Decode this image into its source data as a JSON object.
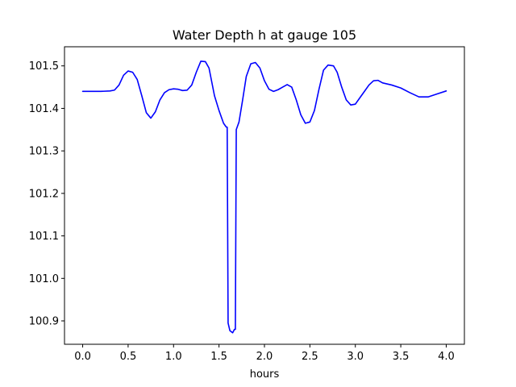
{
  "chart_data": {
    "type": "line",
    "title": "Water Depth h at gauge 105",
    "xlabel": "hours",
    "ylabel": "",
    "xlim": [
      -0.2,
      4.2
    ],
    "ylim": [
      100.845,
      101.545
    ],
    "xticks": [
      0.0,
      0.5,
      1.0,
      1.5,
      2.0,
      2.5,
      3.0,
      3.5,
      4.0
    ],
    "xtick_labels": [
      "0.0",
      "0.5",
      "1.0",
      "1.5",
      "2.0",
      "2.5",
      "3.0",
      "3.5",
      "4.0"
    ],
    "yticks": [
      100.9,
      101.0,
      101.1,
      101.2,
      101.3,
      101.4,
      101.5
    ],
    "ytick_labels": [
      "100.9",
      "101.0",
      "101.1",
      "101.2",
      "101.3",
      "101.4",
      "101.5"
    ],
    "grid": false,
    "series": [
      {
        "name": "",
        "color": "#0000ff",
        "x": [
          0.0,
          0.1,
          0.2,
          0.3,
          0.35,
          0.4,
          0.45,
          0.5,
          0.55,
          0.6,
          0.65,
          0.7,
          0.75,
          0.8,
          0.85,
          0.9,
          0.95,
          1.0,
          1.05,
          1.1,
          1.15,
          1.2,
          1.25,
          1.3,
          1.35,
          1.39,
          1.45,
          1.5,
          1.55,
          1.58,
          1.59,
          1.6,
          1.62,
          1.65,
          1.67,
          1.68,
          1.69,
          1.72,
          1.76,
          1.8,
          1.85,
          1.9,
          1.95,
          2.0,
          2.05,
          2.1,
          2.15,
          2.2,
          2.25,
          2.3,
          2.35,
          2.4,
          2.45,
          2.5,
          2.55,
          2.6,
          2.65,
          2.7,
          2.76,
          2.8,
          2.85,
          2.9,
          2.95,
          3.0,
          3.05,
          3.1,
          3.15,
          3.2,
          3.25,
          3.3,
          3.4,
          3.5,
          3.6,
          3.7,
          3.8,
          3.9,
          4.0
        ],
        "y": [
          101.44,
          101.44,
          101.44,
          101.441,
          101.443,
          101.455,
          101.478,
          101.488,
          101.485,
          101.468,
          101.43,
          101.39,
          101.377,
          101.392,
          101.42,
          101.437,
          101.444,
          101.446,
          101.445,
          101.442,
          101.443,
          101.455,
          101.485,
          101.511,
          101.51,
          101.495,
          101.43,
          101.395,
          101.365,
          101.356,
          101.356,
          100.895,
          100.877,
          100.872,
          100.88,
          100.88,
          101.35,
          101.368,
          101.42,
          101.475,
          101.505,
          101.508,
          101.495,
          101.465,
          101.445,
          101.44,
          101.444,
          101.45,
          101.456,
          101.45,
          101.42,
          101.385,
          101.365,
          101.368,
          101.395,
          101.445,
          101.49,
          101.502,
          101.5,
          101.485,
          101.45,
          101.42,
          101.408,
          101.41,
          101.425,
          101.44,
          101.455,
          101.465,
          101.466,
          101.46,
          101.455,
          101.448,
          101.437,
          101.427,
          101.427,
          101.434,
          101.441
        ]
      }
    ]
  }
}
